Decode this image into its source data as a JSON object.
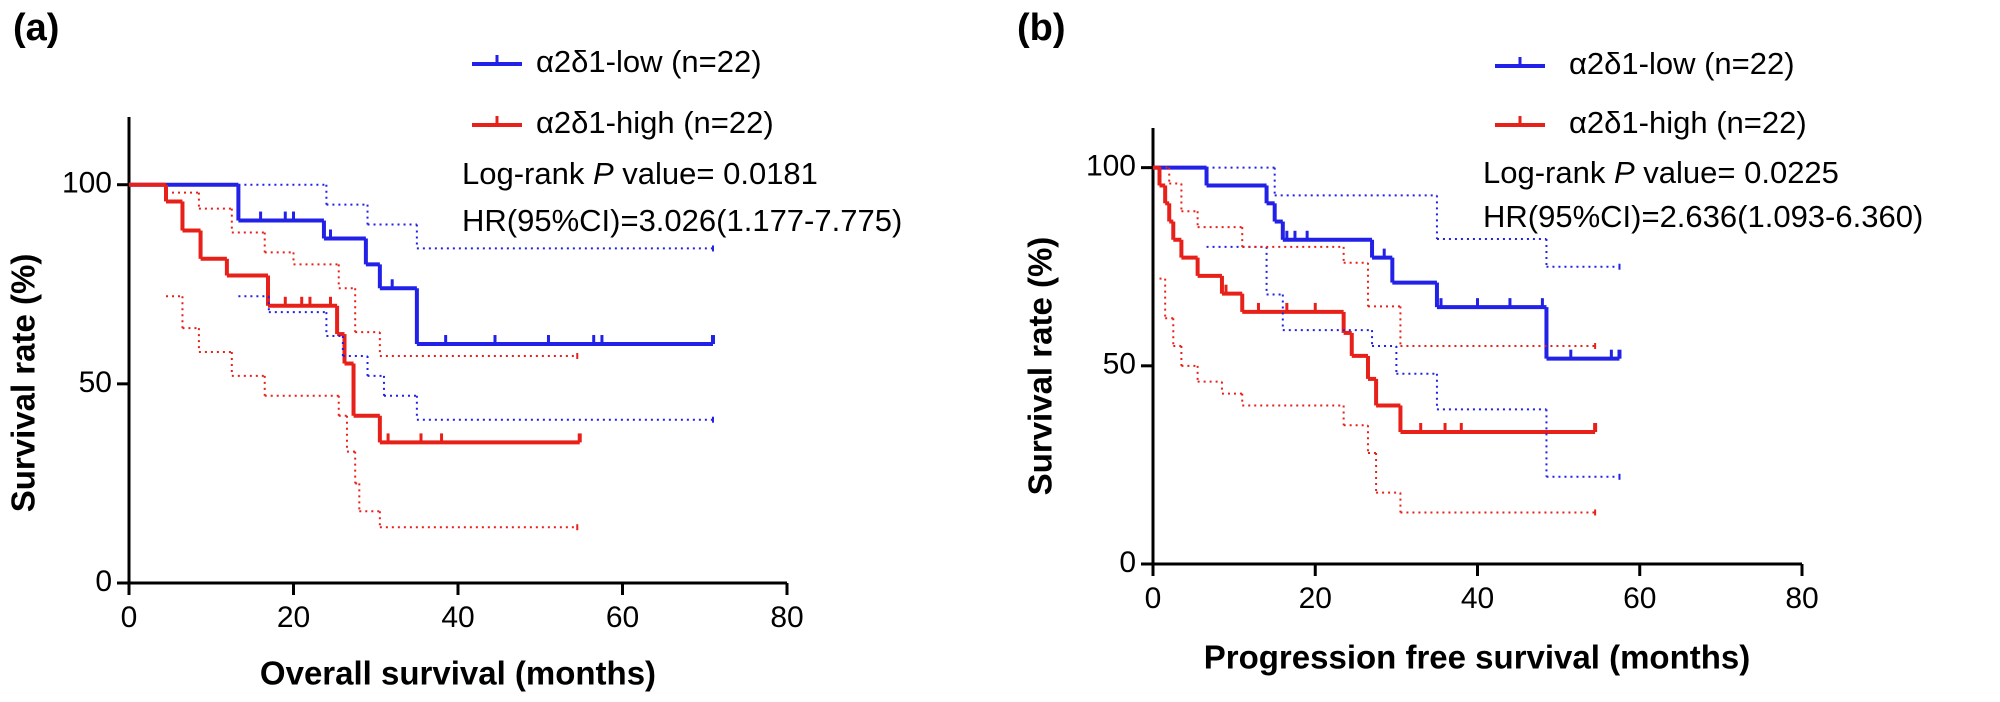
{
  "chart_data": [
    {
      "type": "line",
      "step": true,
      "panel_label": "(a)",
      "x_label": "Overall survival (months)",
      "y_label": "Survival rate (%)",
      "annotations": [
        [
          "Log-rank ",
          "P",
          " value= 0.0181"
        ],
        [
          "HR(95%CI)=3.026(1.177-7.775)"
        ]
      ],
      "xlim": [
        0,
        80
      ],
      "xticks": [
        0,
        20,
        40,
        60,
        80
      ],
      "ylim": [
        0,
        117
      ],
      "yticks": [
        0,
        50,
        100
      ],
      "series": [
        {
          "name": "α2δ1-low (n=22)",
          "color": "#2121e8",
          "line": "solid",
          "x": [
            0,
            13.3,
            23.7,
            28.8,
            30.5,
            35,
            71
          ],
          "values": [
            100,
            91,
            86.5,
            80,
            74,
            60,
            60
          ],
          "censored": [
            16,
            19,
            20,
            24.5,
            32,
            38.5,
            44.5,
            51,
            56.5,
            57.5
          ]
        },
        {
          "name": "α2δ1-high (n=22)",
          "color": "#e8201a",
          "line": "solid",
          "x": [
            0,
            4.5,
            6.5,
            8.7,
            11.9,
            16.9,
            25.3,
            26.2,
            27.3,
            30.5,
            54.8
          ],
          "values": [
            100,
            95.8,
            88.5,
            81.4,
            77.2,
            69.6,
            62.5,
            55.1,
            42,
            35.3,
            35.3
          ],
          "censored": [
            19,
            21,
            22,
            24.5,
            31.5,
            35.5,
            38
          ]
        },
        {
          "color": "#2121e8",
          "line": "dotted",
          "x": [
            13.3,
            24,
            29,
            35,
            71
          ],
          "values": [
            100,
            95,
            90,
            84,
            84
          ]
        },
        {
          "color": "#2121e8",
          "line": "dotted",
          "x": [
            13.3,
            17,
            24,
            26,
            29,
            31,
            35,
            71
          ],
          "values": [
            72,
            68,
            62,
            57,
            52,
            47,
            41,
            41
          ]
        },
        {
          "color": "#e8201a",
          "line": "dotted",
          "x": [
            4.5,
            8.5,
            12.5,
            16.5,
            20,
            25.5,
            27.5,
            30.5,
            54.5
          ],
          "values": [
            98,
            94,
            88,
            83,
            80,
            74,
            63,
            57,
            57
          ]
        },
        {
          "color": "#e8201a",
          "line": "dotted",
          "x": [
            4.5,
            6.5,
            8.5,
            12.5,
            16.5,
            25.5,
            26.5,
            27.5,
            28,
            30.5,
            54.5
          ],
          "values": [
            72,
            64,
            58,
            52,
            47,
            42,
            33,
            25,
            18,
            14,
            14
          ]
        }
      ]
    },
    {
      "type": "line",
      "step": true,
      "panel_label": "(b)",
      "x_label": "Progression free survival (months)",
      "y_label": "Survival rate (%)",
      "annotations": [
        [
          "Log-rank ",
          "P",
          " value= 0.0225"
        ],
        [
          "HR(95%CI)=2.636(1.093-6.360)"
        ]
      ],
      "xlim": [
        0,
        80
      ],
      "xticks": [
        0,
        20,
        40,
        60,
        80
      ],
      "ylim": [
        0,
        110
      ],
      "yticks": [
        0,
        50,
        100
      ],
      "series": [
        {
          "name": "α2δ1-low (n=22)",
          "color": "#2121e8",
          "line": "solid",
          "x": [
            0,
            6.6,
            14,
            15,
            16,
            27,
            29.5,
            35,
            48.5,
            57.5
          ],
          "values": [
            100,
            95.5,
            91,
            86.4,
            81.8,
            77.3,
            71,
            64.8,
            51.8,
            51.8
          ],
          "censored": [
            16.5,
            17.5,
            19,
            28.5,
            35.5,
            40,
            44,
            48,
            51.5,
            56.5
          ]
        },
        {
          "name": "α2δ1-high (n=22)",
          "color": "#e8201a",
          "line": "solid",
          "x": [
            0,
            0.8,
            1.5,
            2,
            2.5,
            3.5,
            5.5,
            8.5,
            11,
            23.5,
            24.5,
            26.5,
            27.5,
            30.5,
            54.5
          ],
          "values": [
            100,
            95.5,
            91,
            86.4,
            81.8,
            77.3,
            72.7,
            68.2,
            63.6,
            58.3,
            52.5,
            46.7,
            40,
            33.3,
            33.3
          ],
          "censored": [
            9,
            13,
            16.5,
            20,
            33,
            36,
            38
          ]
        },
        {
          "color": "#2121e8",
          "line": "dotted",
          "x": [
            6.6,
            15,
            35,
            48.5,
            57.5
          ],
          "values": [
            100,
            93,
            82,
            75,
            75
          ]
        },
        {
          "color": "#2121e8",
          "line": "dotted",
          "x": [
            6.6,
            14,
            16,
            27,
            30,
            35,
            48.5,
            57.5
          ],
          "values": [
            80,
            68,
            59,
            55,
            48,
            39,
            22,
            22
          ]
        },
        {
          "color": "#e8201a",
          "line": "dotted",
          "x": [
            0.8,
            2,
            3.5,
            5.5,
            11,
            23.5,
            26.5,
            30.5,
            54.5
          ],
          "values": [
            100,
            96,
            89,
            85,
            80,
            76,
            65,
            55,
            55
          ]
        },
        {
          "color": "#e8201a",
          "line": "dotted",
          "x": [
            0.8,
            1.5,
            2.5,
            3.5,
            5.5,
            8.5,
            11,
            23.5,
            26.5,
            27.5,
            30.5,
            54.5
          ],
          "values": [
            72,
            62,
            55,
            50,
            46,
            43,
            40,
            35,
            28,
            18,
            13,
            13
          ]
        }
      ]
    }
  ]
}
